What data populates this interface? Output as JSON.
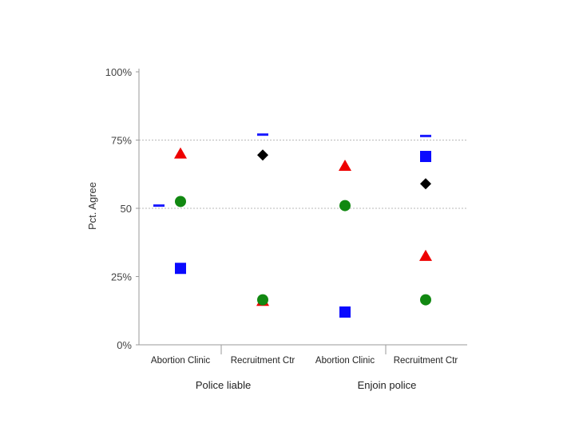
{
  "chart_data": {
    "type": "scatter",
    "ylabel": "Pct. Agree",
    "ylim": [
      0,
      100
    ],
    "y_ticks": [
      {
        "value": 0,
        "label": "0%"
      },
      {
        "value": 25,
        "label": "25%"
      },
      {
        "value": 50,
        "label": "50"
      },
      {
        "value": 75,
        "label": "75%"
      },
      {
        "value": 100,
        "label": "100%"
      }
    ],
    "gridlines_at": [
      50,
      75
    ],
    "categories": [
      "Abortion Clinic",
      "Recruitment Ctr",
      "Abortion Clinic",
      "Recruitment Ctr"
    ],
    "groups": [
      {
        "label": "Police liable",
        "span": [
          0,
          1
        ]
      },
      {
        "label": "Enjoin police",
        "span": [
          2,
          3
        ]
      }
    ],
    "series": [
      {
        "marker": "dash",
        "color": "#1a1aff",
        "values": [
          51,
          77,
          null,
          76.5
        ]
      },
      {
        "marker": "triangle",
        "color": "#ee0000",
        "values": [
          70,
          16,
          65.5,
          32.5
        ]
      },
      {
        "marker": "circle",
        "color": "#118811",
        "values": [
          52.5,
          16.5,
          51,
          16.5
        ]
      },
      {
        "marker": "square",
        "color": "#0a0aff",
        "values": [
          28,
          null,
          12,
          69
        ]
      },
      {
        "marker": "diamond",
        "color": "#000000",
        "values": [
          null,
          69.5,
          null,
          59
        ]
      }
    ]
  }
}
